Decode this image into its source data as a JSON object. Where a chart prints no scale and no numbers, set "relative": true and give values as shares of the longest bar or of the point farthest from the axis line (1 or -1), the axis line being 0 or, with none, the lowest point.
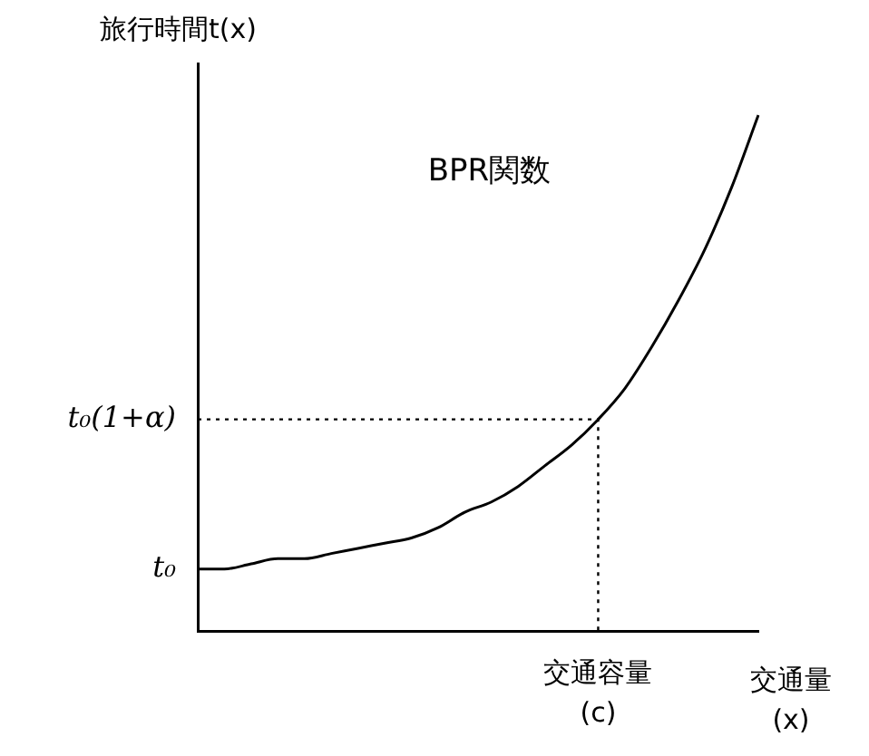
{
  "chart_data": {
    "type": "line",
    "ylabel": "旅行時間t(x)",
    "xlabel": "交通量\n(x)",
    "relative": true,
    "categories": [
      null,
      null,
      null,
      null,
      null,
      null,
      null,
      null,
      null,
      null,
      null,
      null,
      null,
      null,
      null,
      null,
      null,
      null,
      null,
      null,
      null,
      null
    ],
    "series": [
      {
        "color": "#000000",
        "values": [
          0.12,
          0.12,
          0.13,
          0.14,
          0.14,
          0.15,
          0.16,
          0.17,
          0.18,
          0.2,
          0.23,
          0.25,
          0.28,
          0.32,
          0.36,
          0.41,
          0.47,
          0.55,
          0.64,
          0.74,
          0.86,
          1
        ]
      }
    ],
    "ref_lines": [
      {
        "axis": "y",
        "value": 0.41,
        "label": "t₀(1+α)",
        "line_style": "dotted"
      }
    ],
    "annotations": [
      "BPR関数",
      "t₀",
      "交通容量\n(c)"
    ],
    "grid": false,
    "legend": false,
    "marker": "none",
    "line_style": "solid"
  }
}
